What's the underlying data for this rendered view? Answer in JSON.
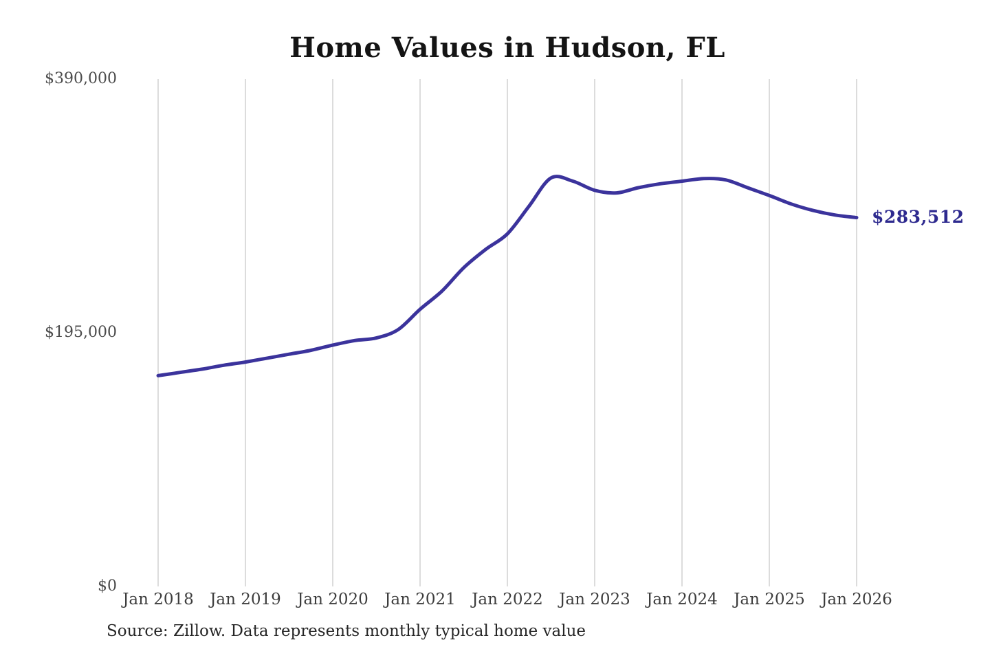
{
  "title": "Home Values in Hudson, FL",
  "source_note": "Source: Zillow. Data represents monthly typical home value",
  "end_label": "$283,512",
  "colors": {
    "line": "#3b339c",
    "end_label": "#2e2a8f",
    "gridline": "#c9c9c9",
    "title": "#141414",
    "y_axis_label": "#4b4b4b",
    "x_axis_label": "#3d3d3d",
    "source": "#262626"
  },
  "chart_data": {
    "type": "line",
    "title": "Home Values in Hudson, FL",
    "xlabel": "",
    "ylabel": "",
    "xlim": [
      2018,
      2026
    ],
    "ylim": [
      0,
      390000
    ],
    "grid": "vertical-only",
    "legend": "none",
    "x_ticks": [
      {
        "label": "Jan 2018",
        "x": 2018
      },
      {
        "label": "Jan 2019",
        "x": 2019
      },
      {
        "label": "Jan 2020",
        "x": 2020
      },
      {
        "label": "Jan 2021",
        "x": 2021
      },
      {
        "label": "Jan 2022",
        "x": 2022
      },
      {
        "label": "Jan 2023",
        "x": 2023
      },
      {
        "label": "Jan 2024",
        "x": 2024
      },
      {
        "label": "Jan 2025",
        "x": 2025
      },
      {
        "label": "Jan 2026",
        "x": 2026
      }
    ],
    "y_ticks": [
      {
        "label": "$0",
        "value": 0
      },
      {
        "label": "$195,000",
        "value": 195000
      },
      {
        "label": "$390,000",
        "value": 390000
      }
    ],
    "series": [
      {
        "name": "Typical home value",
        "x": [
          2018.0,
          2018.25,
          2018.5,
          2018.75,
          2019.0,
          2019.25,
          2019.5,
          2019.75,
          2020.0,
          2020.25,
          2020.5,
          2020.75,
          2021.0,
          2021.25,
          2021.5,
          2021.75,
          2022.0,
          2022.25,
          2022.5,
          2022.75,
          2023.0,
          2023.25,
          2023.5,
          2023.75,
          2024.0,
          2024.25,
          2024.5,
          2024.75,
          2025.0,
          2025.25,
          2025.5,
          2025.75,
          2026.0
        ],
        "values": [
          162000,
          164500,
          167000,
          170000,
          172500,
          175500,
          178500,
          181500,
          185500,
          189000,
          191000,
          197500,
          213000,
          227000,
          245000,
          259000,
          271000,
          292500,
          314000,
          311500,
          304500,
          302500,
          306500,
          309500,
          311500,
          313500,
          312500,
          306500,
          300500,
          294000,
          289000,
          285500,
          283512
        ]
      }
    ],
    "final_value": 283512,
    "final_value_label": "$283,512"
  }
}
